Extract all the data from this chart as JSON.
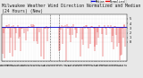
{
  "title": "Milwaukee Weather Wind Direction Normalized and Median (24 Hours) (New)",
  "title_fontsize": 3.5,
  "background_color": "#e8e8e8",
  "plot_bg_color": "#ffffff",
  "grid_color": "#aaaaaa",
  "bar_color": "#dd0000",
  "median_color": "#0000cc",
  "median_value": 3.2,
  "ylim": [
    -4,
    6
  ],
  "ytick_values": [
    0,
    1,
    2,
    3,
    4,
    5
  ],
  "num_points": 144,
  "legend_labels": [
    "Median",
    "Normalized"
  ],
  "legend_colors": [
    "#0000cc",
    "#dd0000"
  ],
  "seed": 12
}
